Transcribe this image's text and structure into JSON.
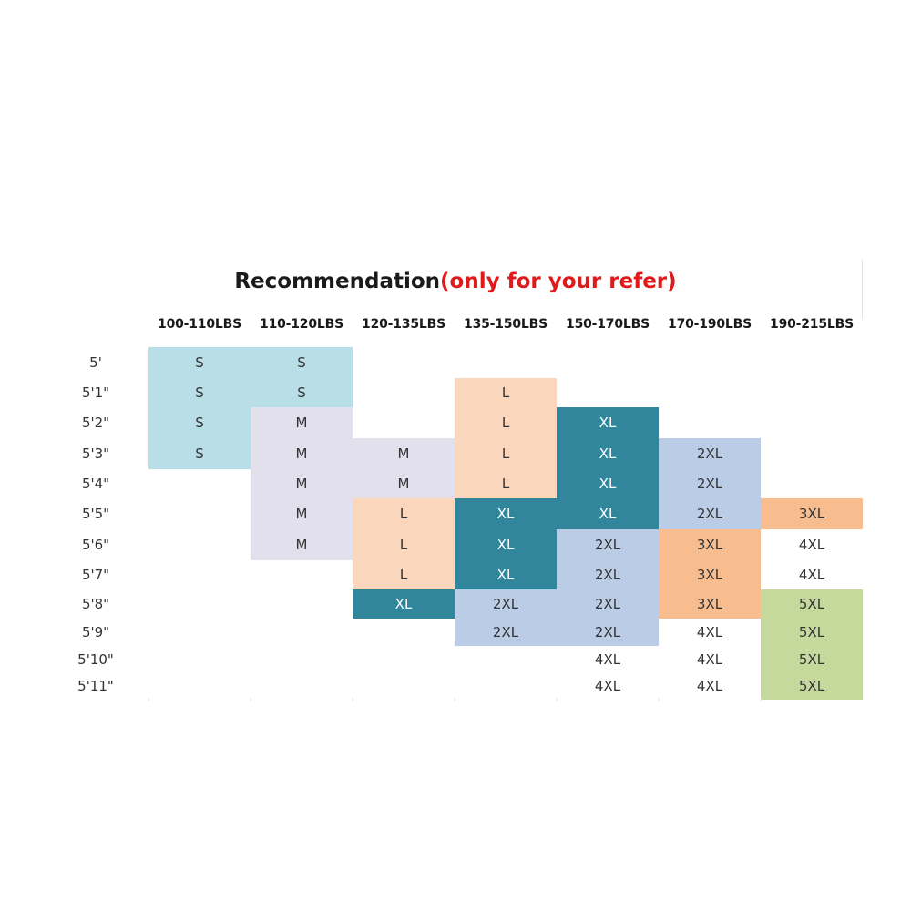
{
  "title": {
    "main": "Recommendation",
    "note": "(only for your refer)"
  },
  "columns": [
    "100-110LBS",
    "110-120LBS",
    "120-135LBS",
    "135-150LBS",
    "150-170LBS",
    "170-190LBS",
    "190-215LBS"
  ],
  "rows": [
    {
      "height": "5'",
      "sizes": [
        "S",
        "S",
        "",
        "",
        "",
        "",
        ""
      ]
    },
    {
      "height": "5'1\"",
      "sizes": [
        "S",
        "S",
        "",
        "L",
        "",
        "",
        ""
      ]
    },
    {
      "height": "5'2\"",
      "sizes": [
        "S",
        "M",
        "",
        "L",
        "XL",
        "",
        ""
      ]
    },
    {
      "height": "5'3\"",
      "sizes": [
        "S",
        "M",
        "M",
        "L",
        "XL",
        "2XL",
        ""
      ]
    },
    {
      "height": "5'4\"",
      "sizes": [
        "",
        "M",
        "M",
        "L",
        "XL",
        "2XL",
        ""
      ]
    },
    {
      "height": "5'5\"",
      "sizes": [
        "",
        "M",
        "L",
        "XL",
        "XL",
        "2XL",
        "3XL"
      ]
    },
    {
      "height": "5'6\"",
      "sizes": [
        "",
        "M",
        "L",
        "XL",
        "2XL",
        "3XL",
        "4XL"
      ]
    },
    {
      "height": "5'7\"",
      "sizes": [
        "",
        "",
        "L",
        "XL",
        "2XL",
        "3XL",
        "4XL"
      ]
    },
    {
      "height": "5'8\"",
      "sizes": [
        "",
        "",
        "XL",
        "2XL",
        "2XL",
        "3XL",
        "5XL"
      ]
    },
    {
      "height": "5'9\"",
      "sizes": [
        "",
        "",
        "",
        "2XL",
        "2XL",
        "4XL",
        "5XL"
      ]
    },
    {
      "height": "5'10\"",
      "sizes": [
        "",
        "",
        "",
        "",
        "4XL",
        "4XL",
        "5XL"
      ]
    },
    {
      "height": "5'11\"",
      "sizes": [
        "",
        "",
        "",
        "",
        "4XL",
        "4XL",
        "5XL"
      ]
    }
  ],
  "size_colors": {
    "S": "#b8dfe7",
    "M": "#e3e0ee",
    "L": "#fad6bd",
    "XL": "#31869b",
    "2XL": "#bacce6",
    "3XL": "#f8bd8e",
    "5XL": "#c5d99c"
  }
}
